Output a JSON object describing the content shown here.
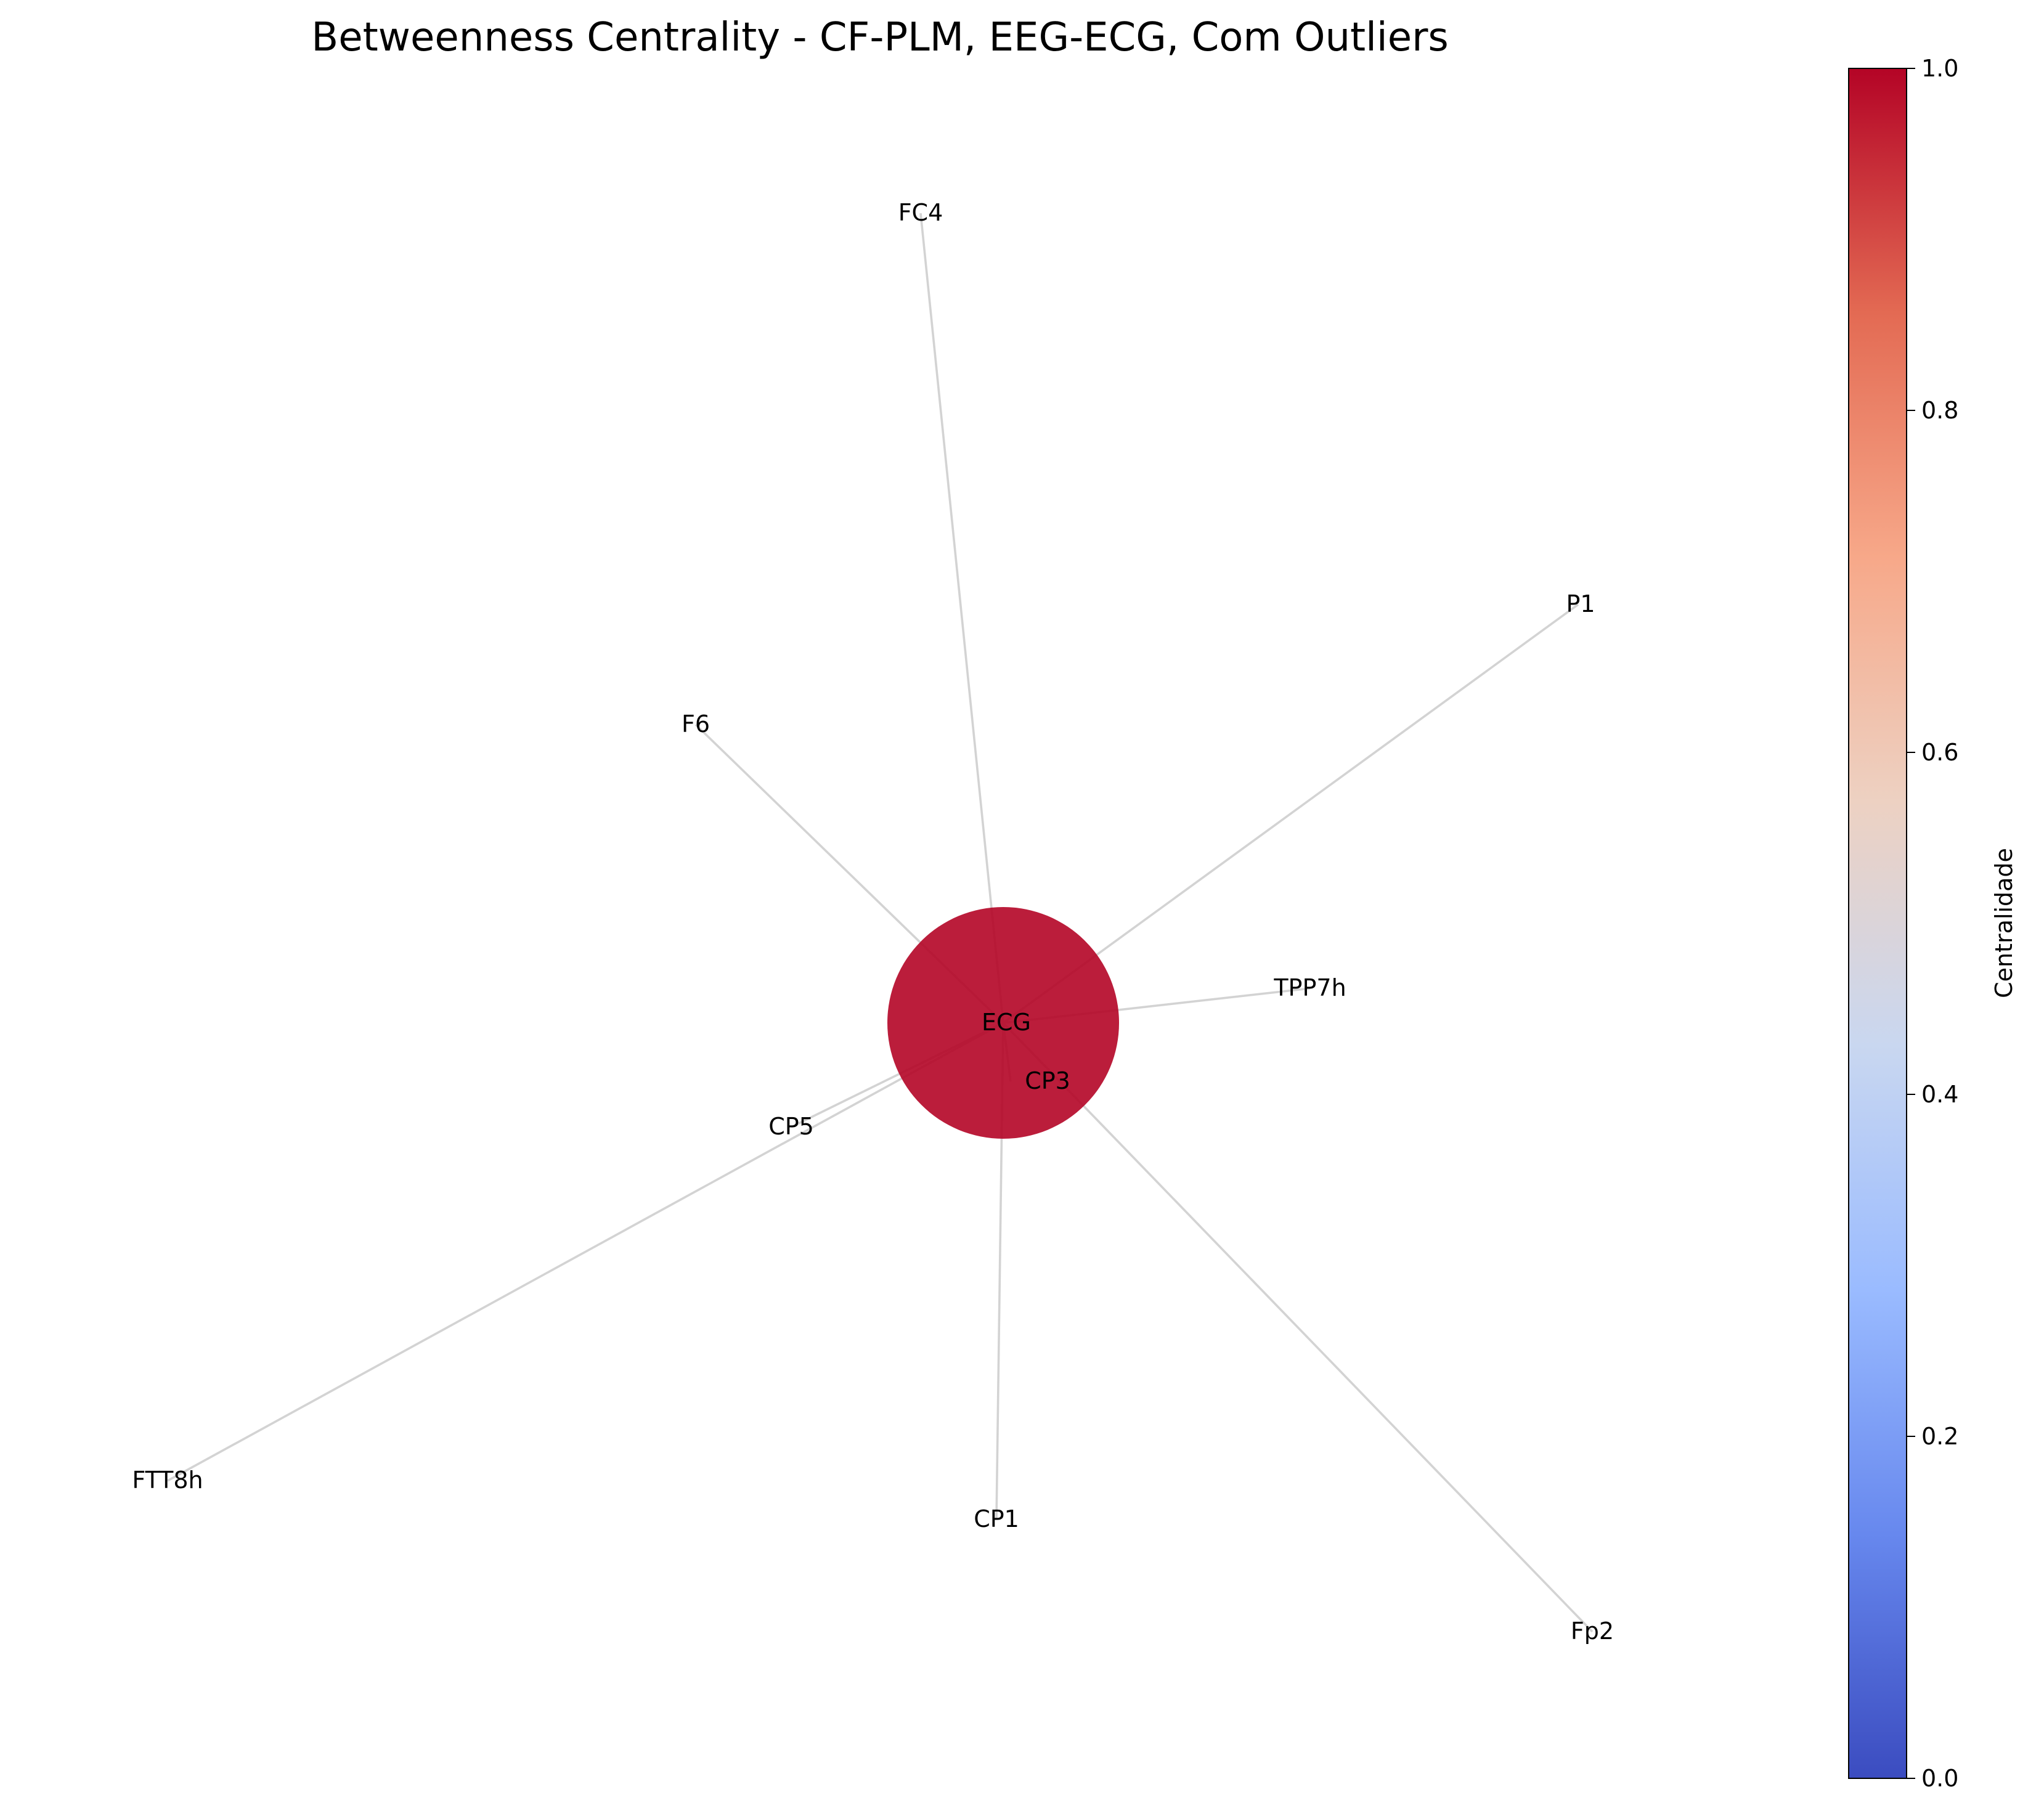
{
  "title": "Betweenness Centrality - CF-PLM, EEG-ECG, Com Outliers",
  "graph": {
    "hub": {
      "label": "ECG",
      "centrality": 1.0,
      "color": "#b40426"
    },
    "nodes": [
      {
        "id": "ECG",
        "label": "ECG",
        "centrality": 1.0
      },
      {
        "id": "CP3",
        "label": "CP3",
        "centrality": 0.0
      },
      {
        "id": "CP5",
        "label": "CP5",
        "centrality": 0.0
      },
      {
        "id": "CP1",
        "label": "CP1",
        "centrality": 0.0
      },
      {
        "id": "FC4",
        "label": "FC4",
        "centrality": 0.0
      },
      {
        "id": "F6",
        "label": "F6",
        "centrality": 0.0
      },
      {
        "id": "P1",
        "label": "P1",
        "centrality": 0.0
      },
      {
        "id": "TPP7h",
        "label": "TPP7h",
        "centrality": 0.0
      },
      {
        "id": "FTT8h",
        "label": "FTT8h",
        "centrality": 0.0
      },
      {
        "id": "Fp2",
        "label": "Fp2",
        "centrality": 0.0
      }
    ],
    "edges": [
      {
        "source": "ECG",
        "target": "FC4"
      },
      {
        "source": "ECG",
        "target": "F6"
      },
      {
        "source": "ECG",
        "target": "P1"
      },
      {
        "source": "ECG",
        "target": "TPP7h"
      },
      {
        "source": "ECG",
        "target": "CP3"
      },
      {
        "source": "ECG",
        "target": "CP5"
      },
      {
        "source": "ECG",
        "target": "FTT8h"
      },
      {
        "source": "ECG",
        "target": "CP1"
      },
      {
        "source": "ECG",
        "target": "Fp2"
      }
    ],
    "edge_color": "#d3d3d3"
  },
  "colorbar": {
    "label": "Centralidade",
    "colormap": "coolwarm",
    "range": [
      0.0,
      1.0
    ],
    "ticks": [
      "0.0",
      "0.2",
      "0.4",
      "0.6",
      "0.8",
      "1.0"
    ],
    "stops": [
      "#3b4cc0",
      "#6788ee",
      "#9abbff",
      "#c9d7f0",
      "#edd1c2",
      "#f7a889",
      "#e36a53",
      "#b40426"
    ]
  }
}
